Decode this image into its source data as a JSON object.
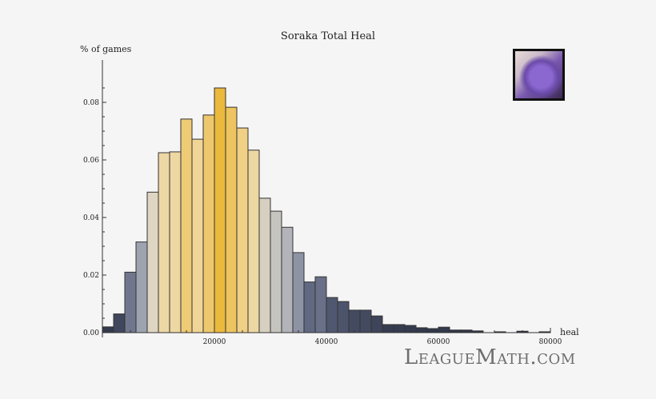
{
  "chart_data": {
    "type": "bar",
    "title": "Soraka Total Heal",
    "xlabel": "heal",
    "ylabel": "% of games",
    "xlim": [
      0,
      80000
    ],
    "ylim": [
      0,
      0.09
    ],
    "bin_width": 2000,
    "x_ticks": [
      "20000",
      "40000",
      "60000",
      "80000"
    ],
    "y_ticks": [
      "0.00",
      "0.02",
      "0.04",
      "0.06",
      "0.08"
    ],
    "bin_starts": [
      0,
      2000,
      4000,
      6000,
      8000,
      10000,
      12000,
      14000,
      16000,
      18000,
      20000,
      22000,
      24000,
      26000,
      28000,
      30000,
      32000,
      34000,
      36000,
      38000,
      40000,
      42000,
      44000,
      46000,
      48000,
      50000,
      52000,
      54000,
      56000,
      58000,
      60000,
      62000,
      64000,
      66000,
      68000,
      70000,
      72000,
      74000,
      76000,
      78000
    ],
    "values": [
      0.002,
      0.0065,
      0.021,
      0.0315,
      0.0488,
      0.0625,
      0.0628,
      0.0742,
      0.0672,
      0.0756,
      0.085,
      0.0783,
      0.0711,
      0.0634,
      0.0467,
      0.0422,
      0.0366,
      0.0278,
      0.0176,
      0.0194,
      0.0122,
      0.0108,
      0.0078,
      0.0078,
      0.0058,
      0.0028,
      0.0028,
      0.0025,
      0.0017,
      0.0014,
      0.0019,
      0.0009,
      0.0009,
      0.0006,
      0,
      0.0003,
      0,
      0.0005,
      0,
      0.0003
    ],
    "grid": false,
    "color_scale": [
      "#2e3447",
      "#5e6680",
      "#a9adb8",
      "#e6dcc4",
      "#f0d595",
      "#ebb93c"
    ]
  },
  "portrait": "soraka-champion-portrait",
  "logo": "LeagueMath.com"
}
